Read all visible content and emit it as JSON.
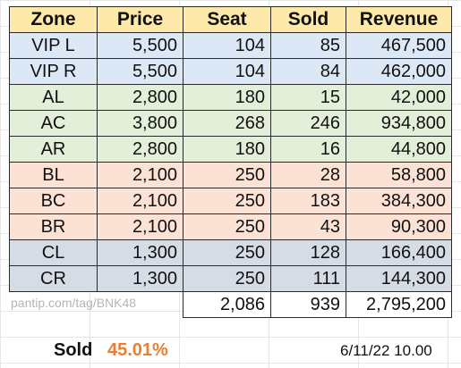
{
  "table": {
    "headers": [
      "Zone",
      "Price",
      "Seat",
      "Sold",
      "Revenue"
    ],
    "rows": [
      {
        "zone": "VIP L",
        "price": "5,500",
        "seat": "104",
        "sold": "85",
        "revenue": "467,500"
      },
      {
        "zone": "VIP R",
        "price": "5,500",
        "seat": "104",
        "sold": "84",
        "revenue": "462,000"
      },
      {
        "zone": "AL",
        "price": "2,800",
        "seat": "180",
        "sold": "15",
        "revenue": "42,000"
      },
      {
        "zone": "AC",
        "price": "3,800",
        "seat": "268",
        "sold": "246",
        "revenue": "934,800"
      },
      {
        "zone": "AR",
        "price": "2,800",
        "seat": "180",
        "sold": "16",
        "revenue": "44,800"
      },
      {
        "zone": "BL",
        "price": "2,100",
        "seat": "250",
        "sold": "28",
        "revenue": "58,800"
      },
      {
        "zone": "BC",
        "price": "2,100",
        "seat": "250",
        "sold": "183",
        "revenue": "384,300"
      },
      {
        "zone": "BR",
        "price": "2,100",
        "seat": "250",
        "sold": "43",
        "revenue": "90,300"
      },
      {
        "zone": "CL",
        "price": "1,300",
        "seat": "250",
        "sold": "128",
        "revenue": "166,400"
      },
      {
        "zone": "CR",
        "price": "1,300",
        "seat": "250",
        "sold": "111",
        "revenue": "144,300"
      }
    ],
    "totals": {
      "seat": "2,086",
      "sold": "939",
      "revenue": "2,795,200"
    }
  },
  "watermark": "pantip.com/tag/BNK48",
  "summary": {
    "label": "Sold",
    "percent": "45.01%",
    "timestamp": "6/11/22 10.00"
  },
  "colors": {
    "header_fill": "#fde9a9",
    "vip_fill": "#dde8f6",
    "zone_a_fill": "#e3efd9",
    "zone_b_fill": "#fbe2d5",
    "zone_c_fill": "#d6dce5",
    "percent_text": "#ed7d31"
  }
}
